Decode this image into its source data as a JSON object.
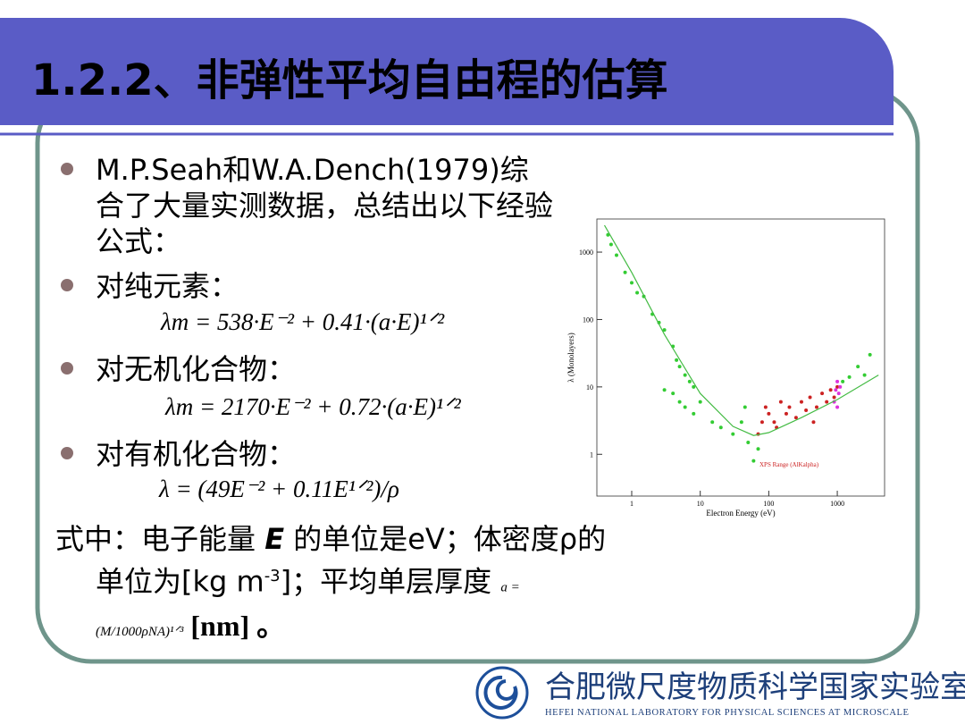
{
  "title": "1.2.2、非弹性平均自由程的估算",
  "bullets": [
    {
      "text": "M.P.Seah和W.A.Dench(1979)综合了大量实测数据，总结出以下经验公式："
    },
    {
      "text": "对纯元素：",
      "formula": "λm = 538·E⁻² + 0.41·(a·E)¹ᐟ²"
    },
    {
      "text": "对无机化合物：",
      "formula": "λm = 2170·E⁻² + 0.72·(a·E)¹ᐟ²"
    },
    {
      "text": "对有机化合物：",
      "formula": "λ = (49E⁻² + 0.11E¹ᐟ²)/ρ"
    }
  ],
  "note": {
    "parts": [
      "式中：电子能量 ",
      "E",
      " 的单位是eV；体密度ρ的单位为[kg m",
      "-3",
      "]；平均单层厚度 ",
      "a = (M/1000ρNA)¹ᐟ³",
      " [nm] 。"
    ]
  },
  "footer": {
    "name_cn": "合肥微尺度物质科学国家实验室(筹)",
    "name_en": "HEFEI NATIONAL LABORATORY FOR PHYSICAL SCIENCES AT MICROSCALE"
  },
  "chart_data": {
    "type": "scatter",
    "x_label": "Electron Energy (eV)",
    "y_label": "λ (Monolayers)",
    "annotation": "XPS Range (AlKalpha)",
    "log_x": true,
    "log_y": true,
    "xlim": [
      0.31,
      4900
    ],
    "ylim": [
      0.24,
      3100
    ],
    "xticks": [
      1,
      10,
      100,
      1000
    ],
    "yticks": [
      1,
      10,
      100,
      1000
    ],
    "series": [
      {
        "color": "#33cc33",
        "mode": "points",
        "x": [
          0.45,
          0.5,
          0.6,
          0.8,
          1.0,
          1.2,
          1.5,
          2,
          2.5,
          3,
          4,
          4.5,
          5,
          6,
          7,
          8,
          4,
          5,
          6,
          8,
          3,
          10,
          15,
          20,
          30,
          40,
          50,
          60,
          70,
          45,
          1200,
          1500,
          2000,
          2500,
          3000
        ],
        "values": [
          1800,
          1300,
          900,
          500,
          350,
          250,
          220,
          120,
          90,
          70,
          40,
          25,
          20,
          15,
          12,
          10,
          8,
          6,
          5,
          4,
          9,
          6,
          3,
          2.5,
          2,
          3,
          1.5,
          0.8,
          1.2,
          5,
          12,
          14,
          20,
          15,
          30
        ]
      },
      {
        "color": "#cc2222",
        "mode": "points",
        "x": [
          70,
          80,
          90,
          100,
          120,
          150,
          180,
          200,
          250,
          300,
          350,
          400,
          500,
          600,
          700,
          800,
          900,
          1000,
          130,
          450
        ],
        "values": [
          2,
          3,
          5,
          4,
          3,
          6,
          4,
          5,
          3.5,
          6,
          4.5,
          7,
          5,
          8,
          6,
          9,
          7,
          10,
          2.5,
          3
        ]
      },
      {
        "color": "#dd33dd",
        "mode": "points",
        "x": [
          900,
          950,
          1000,
          1050,
          1100,
          1000
        ],
        "values": [
          6,
          9,
          12,
          8,
          10,
          5
        ]
      },
      {
        "color": "#44bb44",
        "mode": "line",
        "x": [
          0.4,
          1,
          3,
          10,
          30,
          60,
          100,
          300,
          1000,
          4000
        ],
        "values": [
          2500,
          500,
          60,
          8,
          2.6,
          1.9,
          2.1,
          3.5,
          6.5,
          15
        ]
      }
    ]
  }
}
